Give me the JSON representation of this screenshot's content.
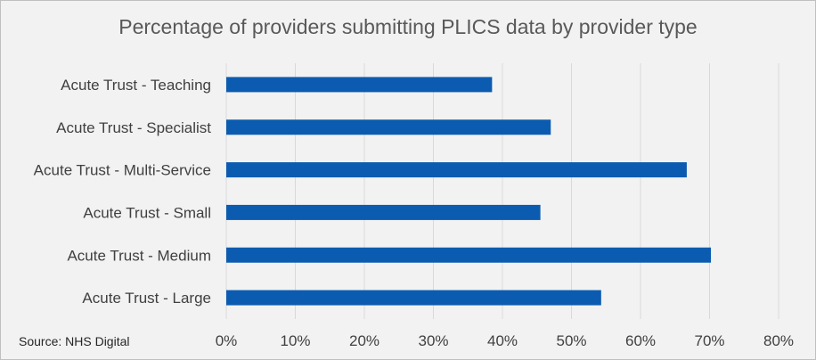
{
  "chart_data": {
    "type": "bar",
    "orientation": "horizontal",
    "title": "Percentage of providers submitting PLICS data by provider type",
    "categories": [
      "Acute Trust - Teaching",
      "Acute Trust - Specialist",
      "Acute Trust - Multi-Service",
      "Acute Trust - Small",
      "Acute Trust - Medium",
      "Acute Trust - Large"
    ],
    "values": [
      38.5,
      47,
      66.7,
      45.5,
      70.2,
      54.3
    ],
    "xlim": [
      0,
      80
    ],
    "x_ticks": [
      "0%",
      "10%",
      "20%",
      "30%",
      "40%",
      "50%",
      "60%",
      "70%",
      "80%"
    ],
    "grid": "vertical",
    "bar_color": "#0b5cb0",
    "source": "Source: NHS Digital"
  }
}
